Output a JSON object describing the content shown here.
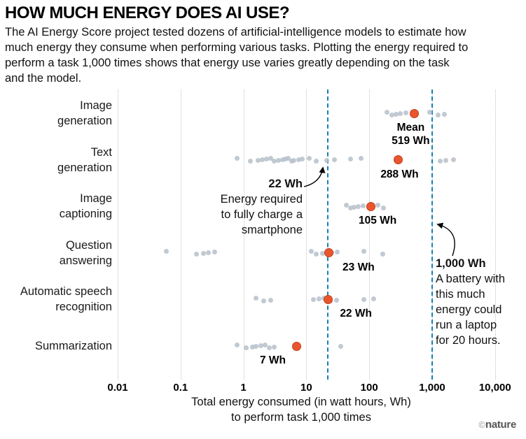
{
  "header": {
    "title": "HOW MUCH ENERGY DOES AI USE?",
    "description": "The AI Energy Score project tested dozens of artificial-intelligence models to estimate how much energy they consume when performing various tasks. Plotting the energy required to perform a task 1,000 times shows that energy use varies greatly depending on the task and the model."
  },
  "chart_data": {
    "type": "scatter",
    "title": "How much energy does AI use?",
    "x_scale": "log",
    "xlabel_lines": [
      "Total energy consumed (in watt hours, Wh)",
      "to perform task 1,000 times"
    ],
    "axis": {
      "min": 0.01,
      "max": 10000,
      "ticks": [
        {
          "value": 0.01,
          "label": "0.01"
        },
        {
          "value": 0.1,
          "label": "0.1"
        },
        {
          "value": 1,
          "label": "1"
        },
        {
          "value": 10,
          "label": "10"
        },
        {
          "value": 100,
          "label": "100"
        },
        {
          "value": 1000,
          "label": "1,000"
        },
        {
          "value": 10000,
          "label": "10,000"
        }
      ]
    },
    "reference_lines": [
      {
        "value": 22,
        "label": "22 Wh"
      },
      {
        "value": 1000,
        "label": "1,000 Wh"
      }
    ],
    "series": [
      {
        "task": "Image generation",
        "label_lines": [
          "Image",
          "generation"
        ],
        "mean": 519,
        "mean_prefix": "Mean",
        "mean_label": "519 Wh",
        "points": [
          190,
          230,
          268,
          312,
          378,
          920,
          1250,
          1550
        ]
      },
      {
        "task": "Text generation",
        "label_lines": [
          "Text",
          "generation"
        ],
        "mean": 288,
        "mean_label": "288 Wh",
        "points": [
          0.8,
          1.3,
          1.7,
          2.0,
          2.3,
          2.7,
          3.1,
          3.6,
          4.2,
          4.7,
          5.2,
          5.8,
          6.4,
          7.5,
          8.7,
          11,
          14.5,
          21,
          28,
          50,
          75,
          1350,
          1650,
          2200
        ]
      },
      {
        "task": "Image captioning",
        "label_lines": [
          "Image",
          "captioning"
        ],
        "mean": 105,
        "mean_label": "105 Wh",
        "points": [
          43,
          50,
          58,
          67,
          79,
          138,
          170
        ]
      },
      {
        "task": "Question answering",
        "label_lines": [
          "Question",
          "answering"
        ],
        "mean": 23,
        "mean_label": "23 Wh",
        "points": [
          0.06,
          0.18,
          0.23,
          0.28,
          0.35,
          12,
          14.5,
          18,
          25,
          31,
          83,
          165
        ]
      },
      {
        "task": "Automatic speech recognition",
        "label_lines": [
          "Automatic speech",
          "recognition"
        ],
        "mean": 22,
        "mean_label": "22 Wh",
        "points": [
          1.6,
          2.1,
          2.7,
          13,
          16,
          19,
          24,
          30,
          83,
          119
        ]
      },
      {
        "task": "Summarization",
        "label_lines": [
          "Summarization"
        ],
        "mean": 7,
        "mean_label": "7 Wh",
        "points": [
          0.8,
          1.1,
          1.4,
          1.6,
          1.9,
          2.2,
          2.6,
          3.1,
          35
        ]
      }
    ],
    "colors": {
      "mean": "#e9562e",
      "point": "#b6c0ca",
      "reference": "#1482b4",
      "grid": "#c2c2c2"
    },
    "legend": "none",
    "grid": "vertical-dotted"
  },
  "annotations": {
    "smartphone": {
      "title": "22 Wh",
      "lines": [
        "Energy required",
        "to fully charge a",
        "smartphone"
      ]
    },
    "laptop": {
      "title": "1,000 Wh",
      "lines": [
        "A battery with",
        "this much",
        "energy could",
        "run a laptop",
        "for 20 hours."
      ]
    }
  },
  "credit": {
    "symbol": "©",
    "name": "nature"
  }
}
